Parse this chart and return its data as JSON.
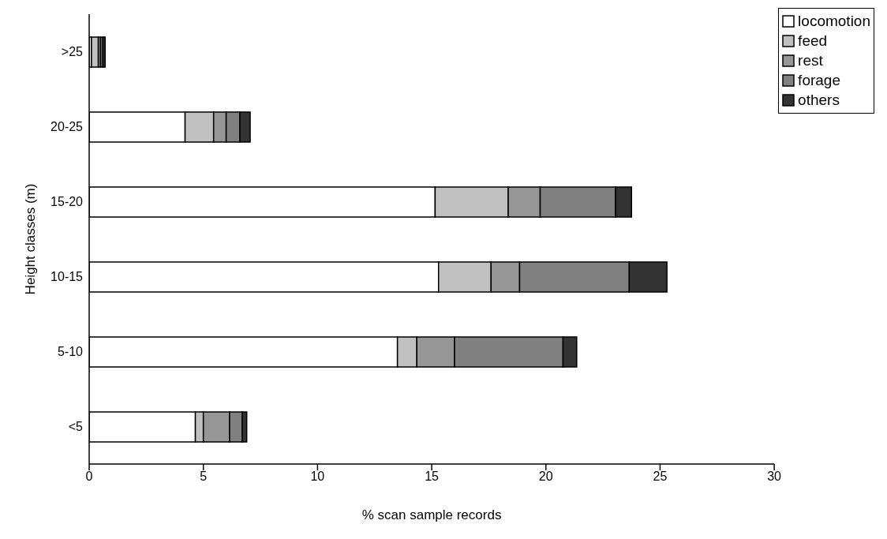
{
  "chart_data": {
    "type": "bar",
    "orientation": "horizontal",
    "stacked": true,
    "xlabel": "% scan sample records",
    "ylabel": "Height classes (m)",
    "categories": [
      ">25",
      "20-25",
      "15-20",
      "10-15",
      "5-10",
      "<5"
    ],
    "series": [
      {
        "name": "locomotion",
        "color": "#ffffff",
        "values": [
          0.1,
          4.2,
          15.15,
          15.3,
          13.5,
          4.65
        ]
      },
      {
        "name": "feed",
        "color": "#c0c0c0",
        "values": [
          0.3,
          1.25,
          3.2,
          2.3,
          0.85,
          0.35
        ]
      },
      {
        "name": "rest",
        "color": "#969696",
        "values": [
          0.1,
          0.55,
          1.4,
          1.25,
          1.65,
          1.15
        ]
      },
      {
        "name": "forage",
        "color": "#808080",
        "values": [
          0.1,
          0.6,
          3.3,
          4.8,
          4.75,
          0.55
        ]
      },
      {
        "name": "others",
        "color": "#333333",
        "values": [
          0.1,
          0.45,
          0.7,
          1.65,
          0.6,
          0.2
        ]
      }
    ],
    "xlim": [
      0,
      30
    ],
    "xticks": [
      0,
      5,
      10,
      15,
      20,
      25,
      30
    ],
    "grid": false,
    "legend": "top right"
  }
}
